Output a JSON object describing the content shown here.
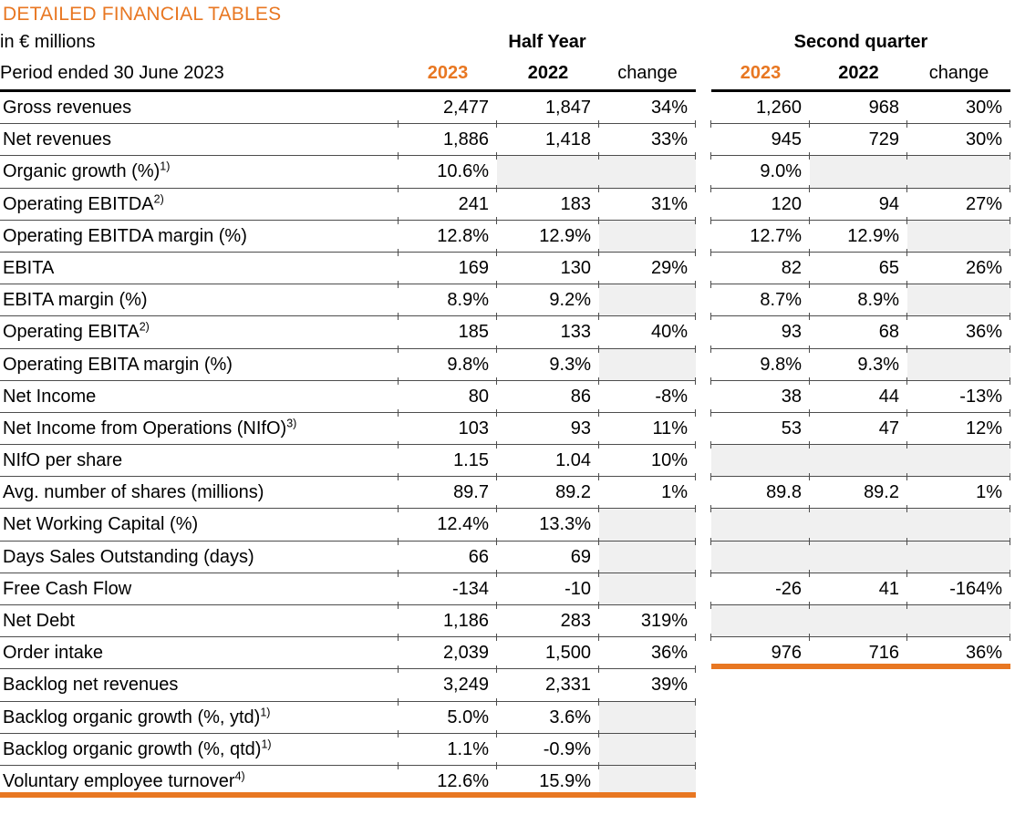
{
  "title": "DETAILED FINANCIAL TABLES",
  "units_label": "in € millions",
  "period_label": "Period ended 30 June 2023",
  "groups": {
    "half_year": "Half Year",
    "second_quarter": "Second quarter"
  },
  "columns": {
    "c2023": "2023",
    "c2022": "2022",
    "change": "change"
  },
  "colors": {
    "accent": "#E87722",
    "grid_line": "#4d4d4d",
    "cell_gray": "#F0F0F0",
    "text": "#000000"
  },
  "rows": [
    {
      "label": "Gross revenues",
      "sup": "",
      "hy": [
        "2,477",
        "1,847",
        "34%"
      ],
      "hy_gray": [
        0,
        0,
        0
      ],
      "q2": [
        "1,260",
        "968",
        "30%"
      ],
      "q2_gray": [
        0,
        0,
        0
      ]
    },
    {
      "label": "Net revenues",
      "sup": "",
      "hy": [
        "1,886",
        "1,418",
        "33%"
      ],
      "hy_gray": [
        0,
        0,
        0
      ],
      "q2": [
        "945",
        "729",
        "30%"
      ],
      "q2_gray": [
        0,
        0,
        0
      ]
    },
    {
      "label": "Organic growth (%)",
      "sup": "1)",
      "hy": [
        "10.6%",
        "",
        ""
      ],
      "hy_gray": [
        0,
        1,
        1
      ],
      "q2": [
        "9.0%",
        "",
        ""
      ],
      "q2_gray": [
        0,
        1,
        1
      ]
    },
    {
      "label": "Operating EBITDA",
      "sup": "2)",
      "hy": [
        "241",
        "183",
        "31%"
      ],
      "hy_gray": [
        0,
        0,
        0
      ],
      "q2": [
        "120",
        "94",
        "27%"
      ],
      "q2_gray": [
        0,
        0,
        0
      ]
    },
    {
      "label": "Operating EBITDA margin (%)",
      "sup": "",
      "hy": [
        "12.8%",
        "12.9%",
        ""
      ],
      "hy_gray": [
        0,
        0,
        1
      ],
      "q2": [
        "12.7%",
        "12.9%",
        ""
      ],
      "q2_gray": [
        0,
        0,
        1
      ]
    },
    {
      "label": "EBITA",
      "sup": "",
      "hy": [
        "169",
        "130",
        "29%"
      ],
      "hy_gray": [
        0,
        0,
        0
      ],
      "q2": [
        "82",
        "65",
        "26%"
      ],
      "q2_gray": [
        0,
        0,
        0
      ]
    },
    {
      "label": "EBITA margin (%)",
      "sup": "",
      "hy": [
        "8.9%",
        "9.2%",
        ""
      ],
      "hy_gray": [
        0,
        0,
        1
      ],
      "q2": [
        "8.7%",
        "8.9%",
        ""
      ],
      "q2_gray": [
        0,
        0,
        1
      ]
    },
    {
      "label": "Operating EBITA",
      "sup": "2)",
      "hy": [
        "185",
        "133",
        "40%"
      ],
      "hy_gray": [
        0,
        0,
        0
      ],
      "q2": [
        "93",
        "68",
        "36%"
      ],
      "q2_gray": [
        0,
        0,
        0
      ]
    },
    {
      "label": "Operating EBITA margin (%)",
      "sup": "",
      "hy": [
        "9.8%",
        "9.3%",
        ""
      ],
      "hy_gray": [
        0,
        0,
        1
      ],
      "q2": [
        "9.8%",
        "9.3%",
        ""
      ],
      "q2_gray": [
        0,
        0,
        1
      ]
    },
    {
      "label": "Net Income",
      "sup": "",
      "hy": [
        "80",
        "86",
        "-8%"
      ],
      "hy_gray": [
        0,
        0,
        0
      ],
      "q2": [
        "38",
        "44",
        "-13%"
      ],
      "q2_gray": [
        0,
        0,
        0
      ]
    },
    {
      "label": "Net Income from Operations (NIfO)",
      "sup": "3)",
      "hy": [
        "103",
        "93",
        "11%"
      ],
      "hy_gray": [
        0,
        0,
        0
      ],
      "q2": [
        "53",
        "47",
        "12%"
      ],
      "q2_gray": [
        0,
        0,
        0
      ]
    },
    {
      "label": "NIfO per share",
      "sup": "",
      "hy": [
        "1.15",
        "1.04",
        "10%"
      ],
      "hy_gray": [
        0,
        0,
        0
      ],
      "q2": [
        "",
        "",
        ""
      ],
      "q2_gray": [
        1,
        1,
        1
      ]
    },
    {
      "label": "Avg. number of shares (millions)",
      "sup": "",
      "hy": [
        "89.7",
        "89.2",
        "1%"
      ],
      "hy_gray": [
        0,
        0,
        0
      ],
      "q2": [
        "89.8",
        "89.2",
        "1%"
      ],
      "q2_gray": [
        0,
        0,
        0
      ]
    },
    {
      "label": "Net Working Capital (%)",
      "sup": "",
      "hy": [
        "12.4%",
        "13.3%",
        ""
      ],
      "hy_gray": [
        0,
        0,
        1
      ],
      "q2": [
        "",
        "",
        ""
      ],
      "q2_gray": [
        1,
        1,
        1
      ]
    },
    {
      "label": "Days Sales Outstanding (days)",
      "sup": "",
      "hy": [
        "66",
        "69",
        ""
      ],
      "hy_gray": [
        0,
        0,
        1
      ],
      "q2": [
        "",
        "",
        ""
      ],
      "q2_gray": [
        1,
        1,
        1
      ]
    },
    {
      "label": "Free Cash Flow",
      "sup": "",
      "hy": [
        "-134",
        "-10",
        ""
      ],
      "hy_gray": [
        0,
        0,
        1
      ],
      "q2": [
        "-26",
        "41",
        "-164%"
      ],
      "q2_gray": [
        0,
        0,
        0
      ]
    },
    {
      "label": "Net Debt",
      "sup": "",
      "hy": [
        "1,186",
        "283",
        "319%"
      ],
      "hy_gray": [
        0,
        0,
        0
      ],
      "q2": [
        "",
        "",
        ""
      ],
      "q2_gray": [
        1,
        1,
        1
      ]
    },
    {
      "label": "Order intake",
      "sup": "",
      "hy": [
        "2,039",
        "1,500",
        "36%"
      ],
      "hy_gray": [
        0,
        0,
        0
      ],
      "q2": [
        "976",
        "716",
        "36%"
      ],
      "q2_gray": [
        0,
        0,
        0
      ]
    },
    {
      "label": "Backlog net revenues",
      "sup": "",
      "hy": [
        "3,249",
        "2,331",
        "39%"
      ],
      "hy_gray": [
        0,
        0,
        0
      ],
      "q2": null,
      "q2_gray": null
    },
    {
      "label": "Backlog organic growth (%, ytd)",
      "sup": "1)",
      "hy": [
        "5.0%",
        "3.6%",
        ""
      ],
      "hy_gray": [
        0,
        0,
        1
      ],
      "q2": null,
      "q2_gray": null
    },
    {
      "label": "Backlog organic growth (%, qtd)",
      "sup": "1)",
      "hy": [
        "1.1%",
        "-0.9%",
        ""
      ],
      "hy_gray": [
        0,
        0,
        1
      ],
      "q2": null,
      "q2_gray": null
    },
    {
      "label": "Voluntary employee turnover",
      "sup": "4)",
      "hy": [
        "12.6%",
        "15.9%",
        ""
      ],
      "hy_gray": [
        0,
        0,
        1
      ],
      "q2": null,
      "q2_gray": null
    }
  ]
}
